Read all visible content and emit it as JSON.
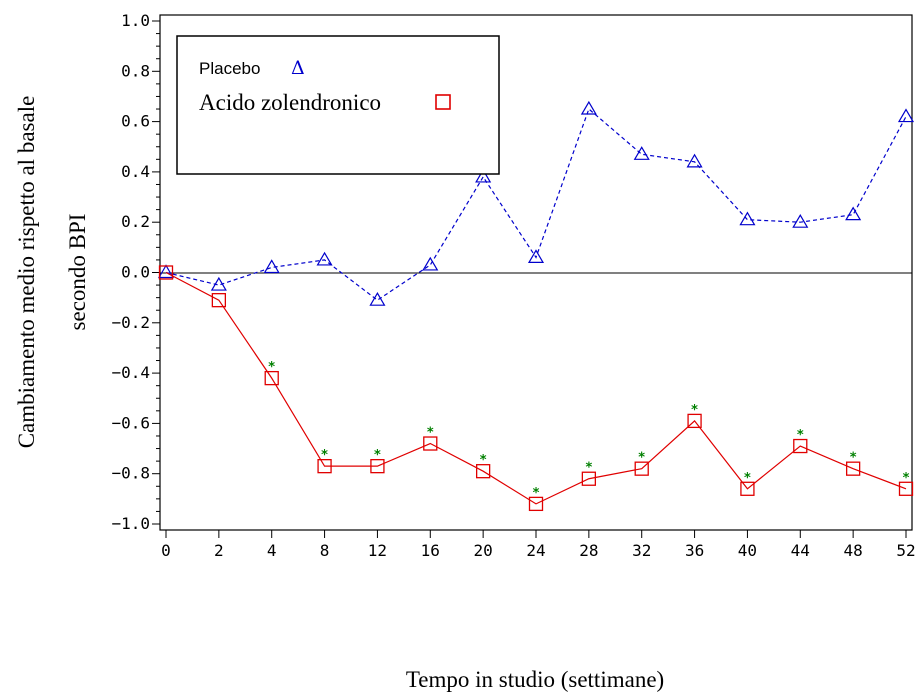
{
  "chart_data": {
    "type": "line",
    "title": "",
    "xlabel": "Tempo in studio (settimane)",
    "ylabel": [
      "Cambiamento medio rispetto al basale",
      "secondo BPI"
    ],
    "categories": [
      "0",
      "2",
      "4",
      "8",
      "12",
      "16",
      "20",
      "24",
      "28",
      "32",
      "36",
      "40",
      "44",
      "48",
      "52"
    ],
    "yticks": [
      "1.0",
      "0.8",
      "0.6",
      "0.4",
      "0.2",
      "0.0",
      "−0.2",
      "−0.4",
      "−0.6",
      "−0.8",
      "−1.0"
    ],
    "ylim": [
      -1.0,
      1.0
    ],
    "grid": false,
    "legend": {
      "placement": "top-left",
      "entries": [
        {
          "label": "Placebo",
          "symbol": "Δ"
        },
        {
          "label": "Acido zolendronico",
          "symbol": "□"
        }
      ]
    },
    "significance_marker": "*",
    "series": [
      {
        "name": "Placebo",
        "color": "#0000cc",
        "line_style": "dashed",
        "marker": "triangle",
        "values": [
          0.0,
          -0.05,
          0.02,
          0.05,
          -0.11,
          0.03,
          0.38,
          0.06,
          0.65,
          0.47,
          0.44,
          0.21,
          0.2,
          0.23,
          0.62
        ]
      },
      {
        "name": "Acido zolendronico",
        "color": "#e00000",
        "line_style": "solid",
        "marker": "square",
        "values": [
          0.0,
          -0.11,
          -0.42,
          -0.77,
          -0.77,
          -0.68,
          -0.79,
          -0.92,
          -0.82,
          -0.78,
          -0.59,
          -0.86,
          -0.69,
          -0.78,
          -0.86
        ],
        "significant": [
          false,
          false,
          true,
          true,
          true,
          true,
          true,
          true,
          true,
          true,
          true,
          true,
          true,
          true,
          true
        ]
      }
    ]
  }
}
